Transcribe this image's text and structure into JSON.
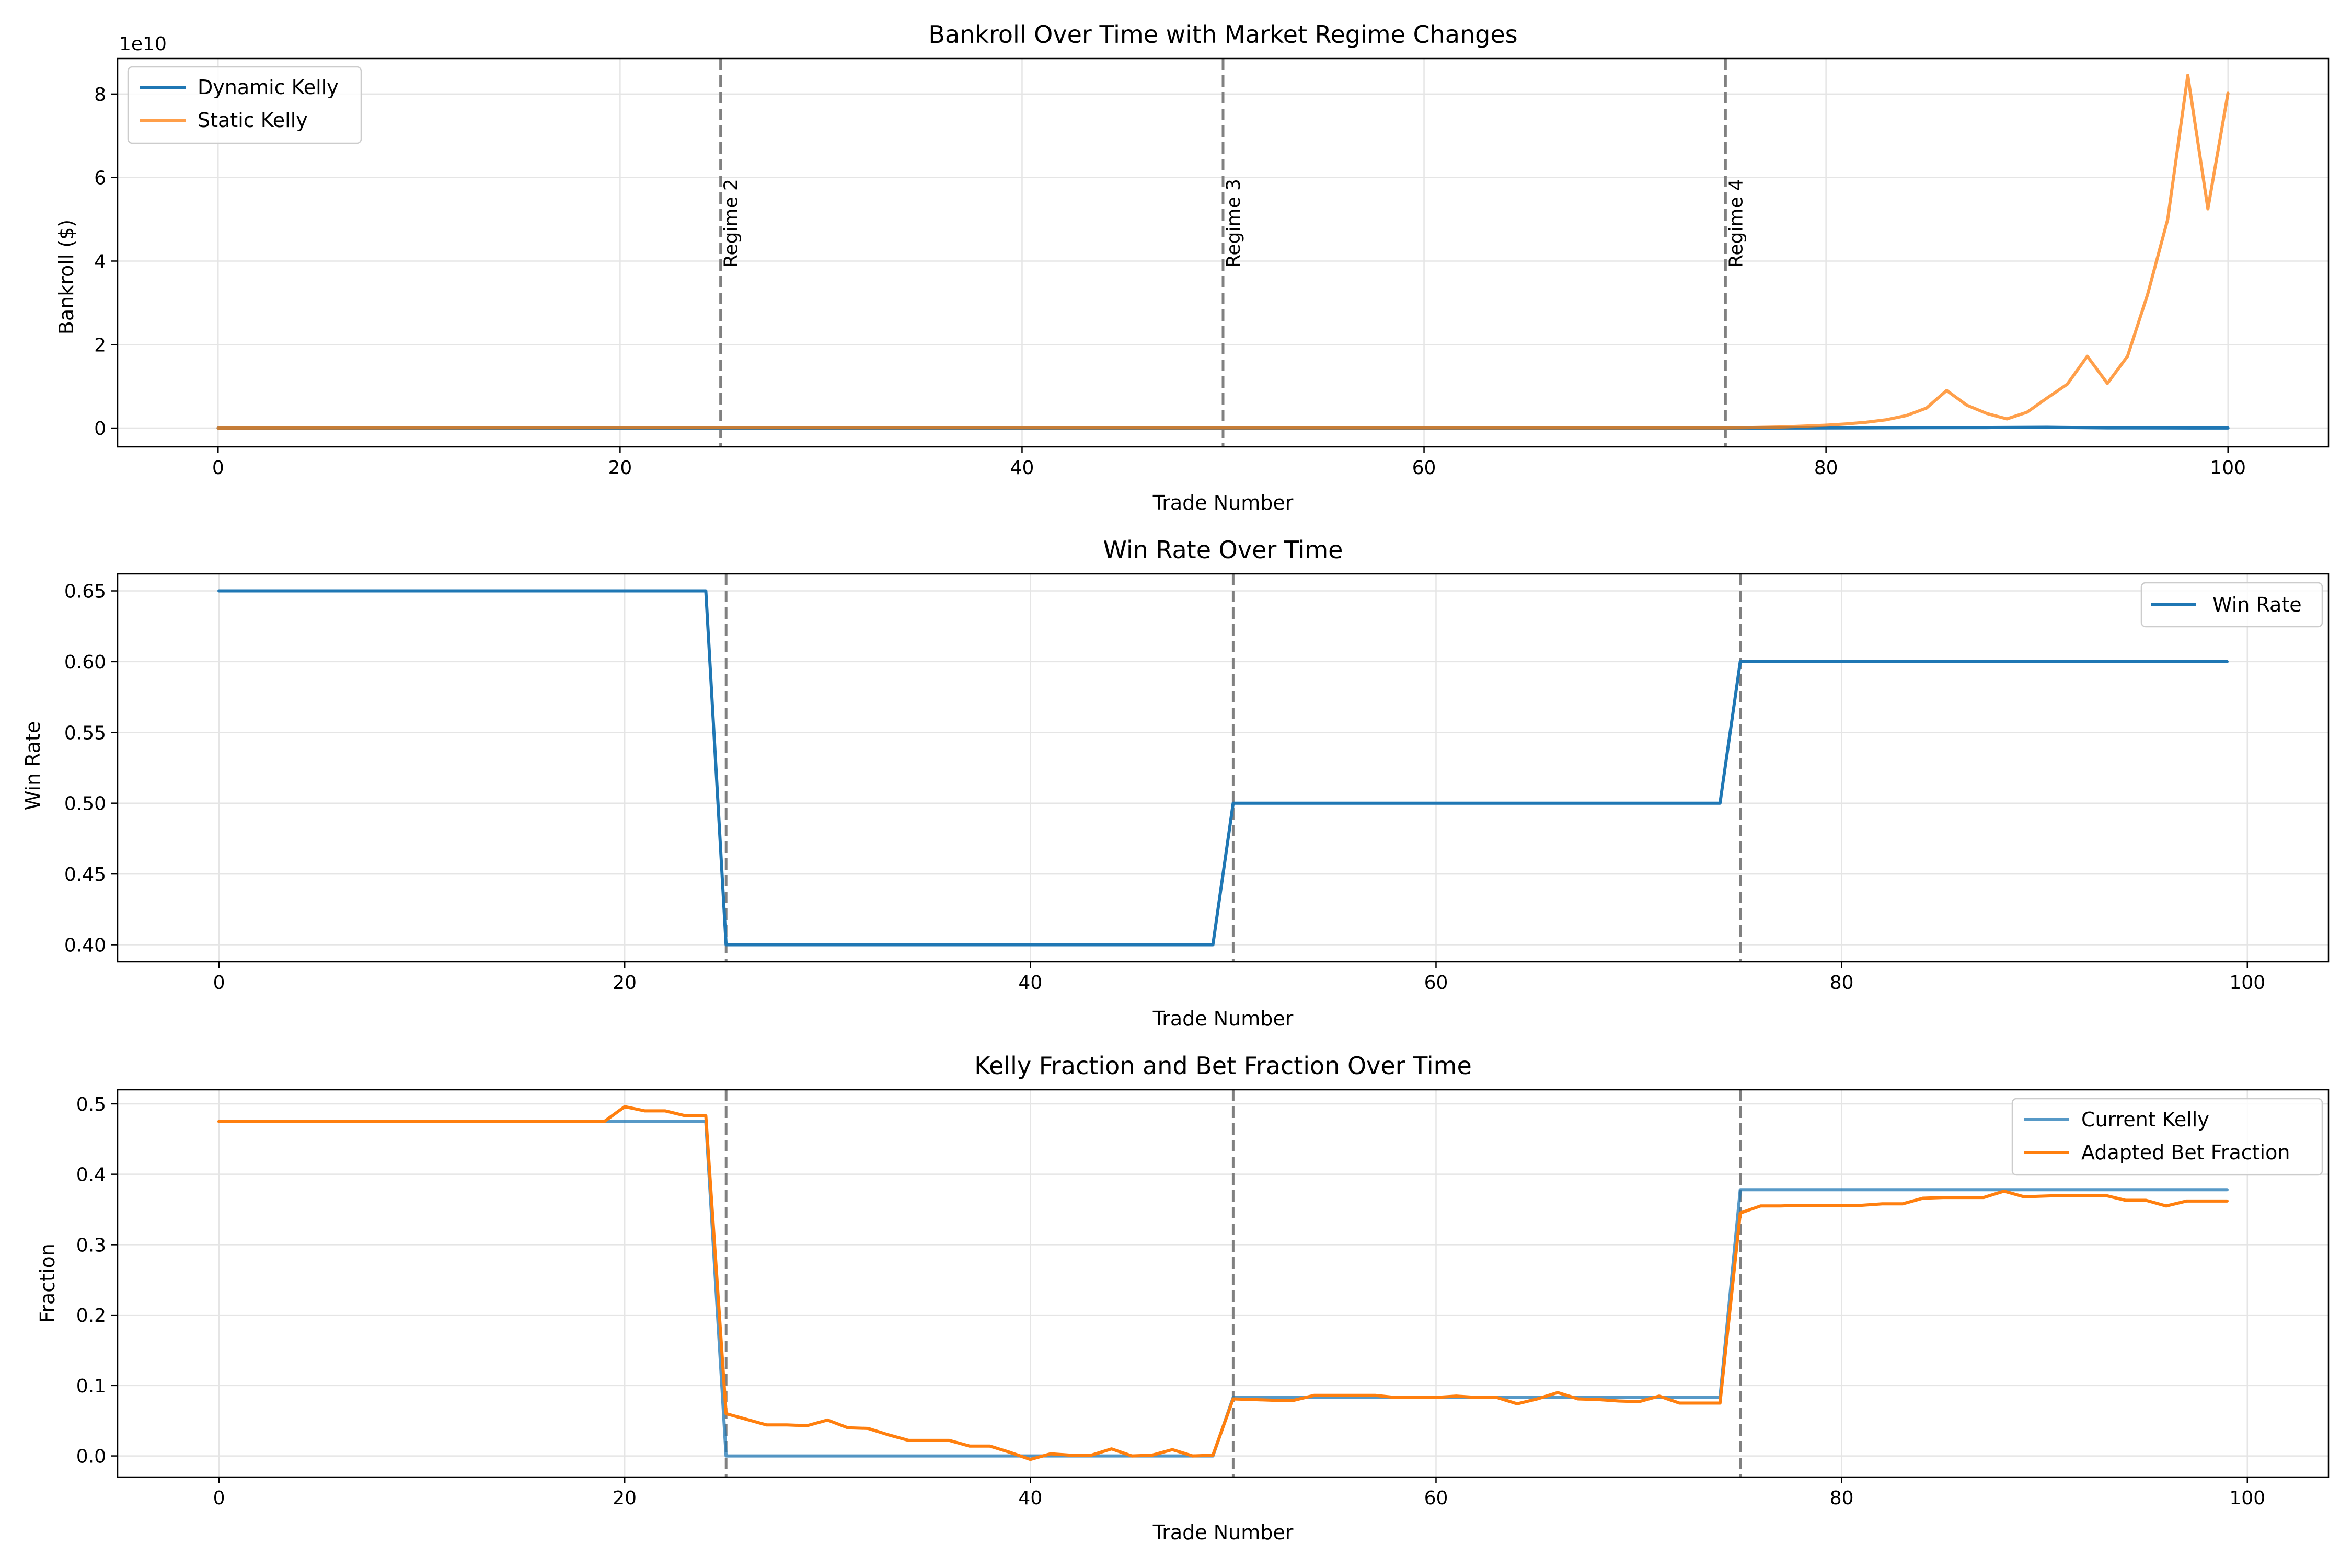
{
  "colors": {
    "dynamic_kelly": "#1f77b4",
    "static_kelly": "#ff7f0e",
    "win_rate": "#1f77b4",
    "current_kelly": "#1f77b4",
    "adapted_bet_fraction": "#ff7f0e",
    "regime_line": "#808080",
    "grid": "#e5e5e5"
  },
  "chart_data": [
    {
      "type": "line",
      "title": "Bankroll Over Time with Market Regime Changes",
      "xlabel": "Trade Number",
      "ylabel": "Bankroll ($)",
      "y_offset_label": "1e10",
      "xlim": [
        -5,
        105
      ],
      "ylim": [
        -0.45,
        8.85
      ],
      "x_ticks": [
        0,
        20,
        40,
        60,
        80,
        100
      ],
      "y_ticks": [
        0,
        2,
        4,
        6,
        8
      ],
      "grid": true,
      "legend_position": "top-left",
      "regime_lines": [
        25,
        50,
        75
      ],
      "regime_labels": [
        "Regime 2",
        "Regime 3",
        "Regime 4"
      ],
      "series": [
        {
          "name": "Dynamic Kelly",
          "color_key": "dynamic_kelly",
          "alpha": 1.0,
          "x": [
            0,
            20,
            25,
            40,
            50,
            60,
            75,
            80,
            85,
            88,
            91,
            94,
            97,
            100
          ],
          "y": [
            0,
            0,
            0,
            0,
            0,
            0,
            0,
            0.003,
            0.01,
            0.012,
            0.02,
            0.005,
            0.003,
            0.002
          ]
        },
        {
          "name": "Static Kelly",
          "color_key": "static_kelly",
          "alpha": 0.75,
          "x": [
            0,
            20,
            25,
            50,
            75,
            76,
            77,
            78,
            79,
            80,
            81,
            82,
            83,
            84,
            85,
            86,
            87,
            88,
            89,
            90,
            91,
            92,
            93,
            94,
            95,
            96,
            97,
            98,
            99,
            100
          ],
          "y": [
            0,
            0.01,
            0.01,
            0.005,
            0.005,
            0.01,
            0.02,
            0.03,
            0.05,
            0.07,
            0.1,
            0.14,
            0.2,
            0.3,
            0.48,
            0.9,
            0.55,
            0.35,
            0.22,
            0.38,
            0.72,
            1.05,
            1.72,
            1.07,
            1.72,
            3.2,
            5.0,
            8.45,
            5.25,
            8.02
          ]
        }
      ]
    },
    {
      "type": "line",
      "title": "Win Rate Over Time",
      "xlabel": "Trade Number",
      "ylabel": "Win Rate",
      "xlim": [
        -5,
        104
      ],
      "ylim": [
        0.388,
        0.662
      ],
      "x_ticks": [
        0,
        20,
        40,
        60,
        80,
        100
      ],
      "y_ticks": [
        0.4,
        0.45,
        0.5,
        0.55,
        0.6,
        0.65
      ],
      "grid": true,
      "legend_position": "top-right",
      "regime_lines": [
        25,
        50,
        75
      ],
      "series": [
        {
          "name": "Win Rate",
          "color_key": "win_rate",
          "alpha": 1.0,
          "x": [
            0,
            24,
            25,
            49,
            50,
            74,
            75,
            99
          ],
          "y": [
            0.65,
            0.65,
            0.4,
            0.4,
            0.5,
            0.5,
            0.6,
            0.6
          ]
        }
      ]
    },
    {
      "type": "line",
      "title": "Kelly Fraction and Bet Fraction Over Time",
      "xlabel": "Trade Number",
      "ylabel": "Fraction",
      "xlim": [
        -5,
        104
      ],
      "ylim": [
        -0.03,
        0.52
      ],
      "x_ticks": [
        0,
        20,
        40,
        60,
        80,
        100
      ],
      "y_ticks": [
        0.0,
        0.1,
        0.2,
        0.3,
        0.4,
        0.5
      ],
      "grid": true,
      "legend_position": "top-right",
      "regime_lines": [
        25,
        50,
        75
      ],
      "series": [
        {
          "name": "Current Kelly",
          "color_key": "current_kelly",
          "alpha": 0.75,
          "x": [
            0,
            24,
            25,
            49,
            50,
            74,
            75,
            99
          ],
          "y": [
            0.475,
            0.475,
            0.0,
            0.0,
            0.083,
            0.083,
            0.378,
            0.378
          ]
        },
        {
          "name": "Adapted Bet Fraction",
          "color_key": "adapted_bet_fraction",
          "alpha": 1.0,
          "x": [
            0,
            19,
            20,
            21,
            22,
            23,
            24,
            25,
            26,
            27,
            28,
            29,
            30,
            31,
            32,
            33,
            34,
            35,
            36,
            37,
            38,
            39,
            40,
            41,
            42,
            43,
            44,
            45,
            46,
            47,
            48,
            49,
            50,
            51,
            52,
            53,
            54,
            55,
            56,
            57,
            58,
            59,
            60,
            61,
            62,
            63,
            64,
            65,
            66,
            67,
            68,
            69,
            70,
            71,
            72,
            73,
            74,
            75,
            76,
            77,
            78,
            79,
            80,
            81,
            82,
            83,
            84,
            85,
            86,
            87,
            88,
            89,
            90,
            91,
            92,
            93,
            94,
            95,
            96,
            97,
            98,
            99
          ],
          "y": [
            0.475,
            0.475,
            0.496,
            0.49,
            0.49,
            0.483,
            0.483,
            0.06,
            0.052,
            0.044,
            0.044,
            0.043,
            0.051,
            0.04,
            0.039,
            0.03,
            0.022,
            0.022,
            0.022,
            0.014,
            0.014,
            0.005,
            -0.005,
            0.003,
            0.001,
            0.001,
            0.01,
            0.0,
            0.001,
            0.009,
            0.0,
            0.001,
            0.081,
            0.08,
            0.079,
            0.079,
            0.086,
            0.086,
            0.086,
            0.086,
            0.083,
            0.083,
            0.083,
            0.085,
            0.083,
            0.083,
            0.074,
            0.081,
            0.09,
            0.081,
            0.08,
            0.078,
            0.077,
            0.085,
            0.075,
            0.075,
            0.075,
            0.345,
            0.355,
            0.355,
            0.356,
            0.356,
            0.356,
            0.356,
            0.358,
            0.358,
            0.366,
            0.367,
            0.367,
            0.367,
            0.376,
            0.368,
            0.369,
            0.37,
            0.37,
            0.37,
            0.363,
            0.363,
            0.355,
            0.362,
            0.362,
            0.362
          ]
        }
      ]
    }
  ]
}
